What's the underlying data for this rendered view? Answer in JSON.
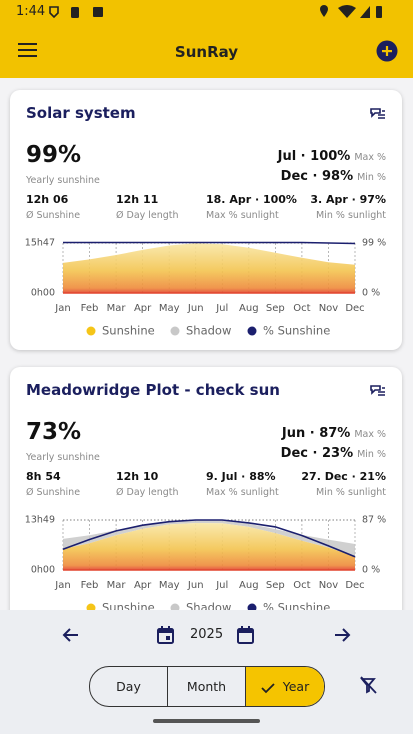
{
  "status_bar": {
    "time": "1:44"
  },
  "app_bar": {
    "title": "SunRay"
  },
  "cards": [
    {
      "title": "Solar system",
      "yearly": {
        "value": "99%",
        "label": "Yearly sunshine"
      },
      "max": {
        "value": "Jul · 100%",
        "label": "Max %"
      },
      "min": {
        "value": "Dec · 98%",
        "label": "Min %"
      },
      "stats": [
        {
          "value": "12h 06",
          "label": "Ø Sunshine"
        },
        {
          "value": "12h 11",
          "label": "Ø Day length"
        },
        {
          "value": "18. Apr · 100%",
          "label": "Max % sunlight"
        },
        {
          "value": "3. Apr · 97%",
          "label": "Min % sunlight"
        }
      ],
      "chart": {
        "type": "area",
        "categories": [
          "Jan",
          "Feb",
          "Mar",
          "Apr",
          "May",
          "Jun",
          "Jul",
          "Aug",
          "Sep",
          "Oct",
          "Nov",
          "Dec"
        ],
        "ylim": [
          0,
          15.78
        ],
        "yticks": [
          {
            "value": 0,
            "label": "0h00"
          },
          {
            "value": 15.78,
            "label": "15h47"
          }
        ],
        "y2lim": [
          0,
          99
        ],
        "y2ticks": [
          {
            "value": 0,
            "label": "0 %"
          },
          {
            "value": 99,
            "label": "99 %"
          }
        ],
        "series": [
          {
            "name": "Sunshine",
            "color": "#f5c518",
            "values": [
              9.5,
              10.6,
              12.0,
              13.6,
              15.0,
              15.7,
              15.4,
              14.3,
              12.7,
              11.1,
              9.7,
              8.9
            ]
          },
          {
            "name": "Shadow",
            "color": "#c8c8c8",
            "values": [
              0,
              0,
              0,
              0,
              0,
              0,
              0,
              0,
              0,
              0,
              0,
              0
            ]
          },
          {
            "name": "% Sunshine",
            "color": "#1b1f6e",
            "axis": "y2",
            "values": [
              100,
              100,
              100,
              100,
              100,
              100,
              100,
              100,
              100,
              100,
              99,
              98
            ]
          }
        ]
      }
    },
    {
      "title": "Meadowridge Plot - check sun",
      "yearly": {
        "value": "73%",
        "label": "Yearly sunshine"
      },
      "max": {
        "value": "Jun · 87%",
        "label": "Max %"
      },
      "min": {
        "value": "Dec · 23%",
        "label": "Min %"
      },
      "stats": [
        {
          "value": "8h 54",
          "label": "Ø Sunshine"
        },
        {
          "value": "12h 10",
          "label": "Ø Day length"
        },
        {
          "value": "9. Jul · 88%",
          "label": "Max % sunlight"
        },
        {
          "value": "27. Dec · 21%",
          "label": "Min % sunlight"
        }
      ],
      "chart": {
        "type": "area",
        "categories": [
          "Jan",
          "Feb",
          "Mar",
          "Apr",
          "May",
          "Jun",
          "Jul",
          "Aug",
          "Sep",
          "Oct",
          "Nov",
          "Dec"
        ],
        "ylim": [
          0,
          13.82
        ],
        "yticks": [
          {
            "value": 0,
            "label": "0h00"
          },
          {
            "value": 13.82,
            "label": "13h49"
          }
        ],
        "y2lim": [
          0,
          87
        ],
        "y2ticks": [
          {
            "value": 0,
            "label": "0 %"
          },
          {
            "value": 87,
            "label": "87 %"
          }
        ],
        "series": [
          {
            "name": "Sunshine",
            "color": "#f5c518",
            "values": [
              5.8,
              7.4,
              9.6,
              11.4,
              12.6,
              13.0,
              12.9,
              11.9,
              10.2,
              8.1,
              6.2,
              3.7
            ]
          },
          {
            "name": "Shadow",
            "color": "#c8c8c8",
            "values": [
              2.8,
              2.2,
              1.4,
              1.0,
              0.9,
              0.8,
              0.8,
              0.9,
              1.1,
              1.6,
              2.2,
              3.5
            ]
          },
          {
            "name": "% Sunshine",
            "color": "#1b1f6e",
            "axis": "y2",
            "values": [
              36,
              53,
              68,
              78,
              84,
              87,
              87,
              82,
              75,
              60,
              42,
              23
            ]
          }
        ]
      }
    }
  ],
  "navigation": {
    "year": "2025"
  },
  "view_toggle": [
    "Day",
    "Month",
    "Year"
  ]
}
